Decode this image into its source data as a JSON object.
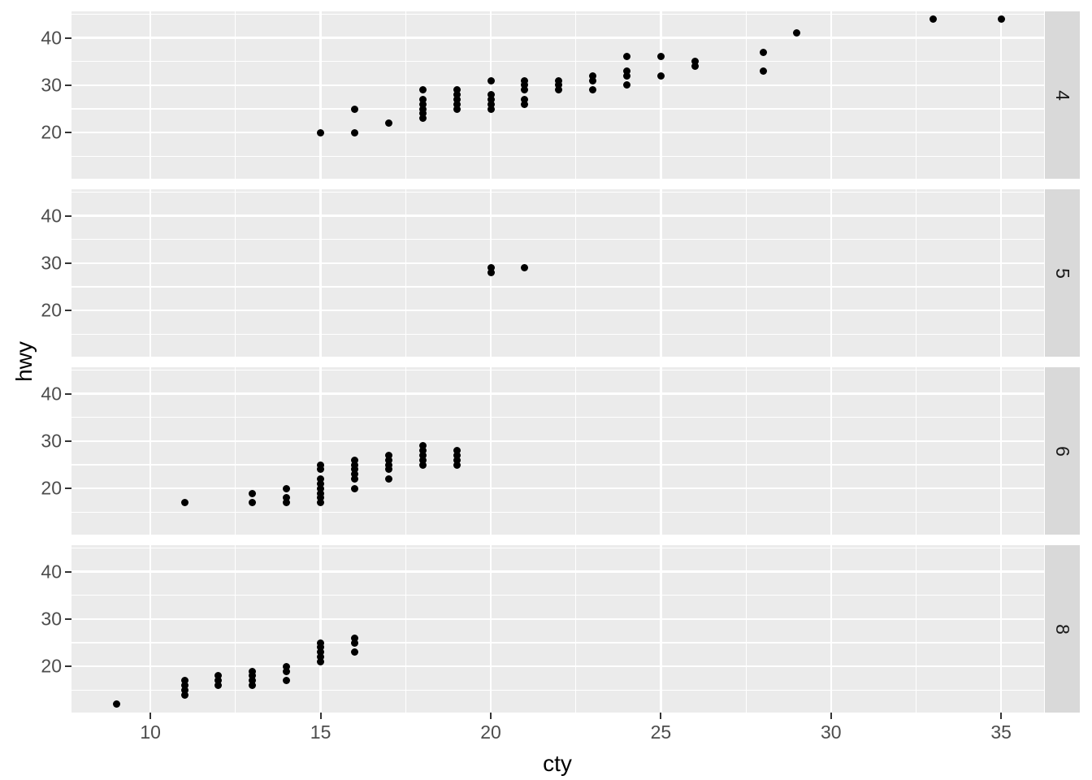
{
  "chart_data": {
    "type": "scatter",
    "title": "",
    "xlabel": "cty",
    "ylabel": "hwy",
    "x_ticks": [
      10,
      15,
      20,
      25,
      30,
      35
    ],
    "x_minor_ticks": [
      12.5,
      17.5,
      22.5,
      27.5,
      32.5
    ],
    "y_ticks": [
      40,
      30,
      20
    ],
    "y_minor_ticks": [
      45,
      35,
      25,
      15
    ],
    "x_range": [
      7.68,
      36.26
    ],
    "y_range": [
      10.26,
      45.59
    ],
    "grid": true,
    "legend": "none",
    "facet_labels": [
      "4",
      "5",
      "6",
      "8"
    ],
    "facets": [
      {
        "label": "4",
        "points": [
          [
            15,
            20
          ],
          [
            16,
            20
          ],
          [
            16,
            25
          ],
          [
            17,
            22
          ],
          [
            18,
            23
          ],
          [
            18,
            24
          ],
          [
            18,
            25
          ],
          [
            18,
            26
          ],
          [
            18,
            27
          ],
          [
            18,
            29
          ],
          [
            19,
            25
          ],
          [
            19,
            26
          ],
          [
            19,
            27
          ],
          [
            19,
            28
          ],
          [
            19,
            29
          ],
          [
            20,
            25
          ],
          [
            20,
            26
          ],
          [
            20,
            27
          ],
          [
            20,
            28
          ],
          [
            20,
            31
          ],
          [
            21,
            26
          ],
          [
            21,
            27
          ],
          [
            21,
            29
          ],
          [
            21,
            30
          ],
          [
            21,
            31
          ],
          [
            22,
            29
          ],
          [
            22,
            30
          ],
          [
            22,
            31
          ],
          [
            23,
            29
          ],
          [
            23,
            31
          ],
          [
            23,
            32
          ],
          [
            24,
            30
          ],
          [
            24,
            32
          ],
          [
            24,
            33
          ],
          [
            24,
            36
          ],
          [
            25,
            32
          ],
          [
            25,
            36
          ],
          [
            26,
            34
          ],
          [
            26,
            35
          ],
          [
            28,
            33
          ],
          [
            28,
            37
          ],
          [
            29,
            41
          ],
          [
            33,
            44
          ],
          [
            35,
            44
          ]
        ]
      },
      {
        "label": "5",
        "points": [
          [
            20,
            28
          ],
          [
            20,
            29
          ],
          [
            21,
            29
          ]
        ]
      },
      {
        "label": "6",
        "points": [
          [
            11,
            17
          ],
          [
            13,
            17
          ],
          [
            13,
            19
          ],
          [
            14,
            17
          ],
          [
            14,
            18
          ],
          [
            14,
            20
          ],
          [
            15,
            17
          ],
          [
            15,
            18
          ],
          [
            15,
            19
          ],
          [
            15,
            20
          ],
          [
            15,
            21
          ],
          [
            15,
            22
          ],
          [
            15,
            24
          ],
          [
            15,
            25
          ],
          [
            16,
            20
          ],
          [
            16,
            22
          ],
          [
            16,
            23
          ],
          [
            16,
            24
          ],
          [
            16,
            25
          ],
          [
            16,
            26
          ],
          [
            17,
            22
          ],
          [
            17,
            24
          ],
          [
            17,
            25
          ],
          [
            17,
            26
          ],
          [
            17,
            27
          ],
          [
            18,
            25
          ],
          [
            18,
            26
          ],
          [
            18,
            27
          ],
          [
            18,
            28
          ],
          [
            18,
            29
          ],
          [
            19,
            25
          ],
          [
            19,
            26
          ],
          [
            19,
            27
          ],
          [
            19,
            28
          ]
        ]
      },
      {
        "label": "8",
        "points": [
          [
            9,
            12
          ],
          [
            11,
            14
          ],
          [
            11,
            15
          ],
          [
            11,
            16
          ],
          [
            11,
            17
          ],
          [
            12,
            16
          ],
          [
            12,
            17
          ],
          [
            12,
            18
          ],
          [
            13,
            16
          ],
          [
            13,
            17
          ],
          [
            13,
            18
          ],
          [
            13,
            19
          ],
          [
            14,
            17
          ],
          [
            14,
            19
          ],
          [
            14,
            20
          ],
          [
            15,
            21
          ],
          [
            15,
            22
          ],
          [
            15,
            23
          ],
          [
            15,
            24
          ],
          [
            15,
            25
          ],
          [
            16,
            23
          ],
          [
            16,
            25
          ],
          [
            16,
            26
          ]
        ]
      }
    ],
    "style": {
      "panel_background": "#EBEBEB",
      "strip_background": "#D9D9D9",
      "strip_text_color": "#1A1A1A",
      "gridline_color": "#FFFFFF",
      "point_color": "#000000",
      "axis_tick_color": "#333333",
      "axis_text_color": "#4D4D4D",
      "axis_title_color": "#000000",
      "figure_background": "#FFFFFF"
    }
  }
}
